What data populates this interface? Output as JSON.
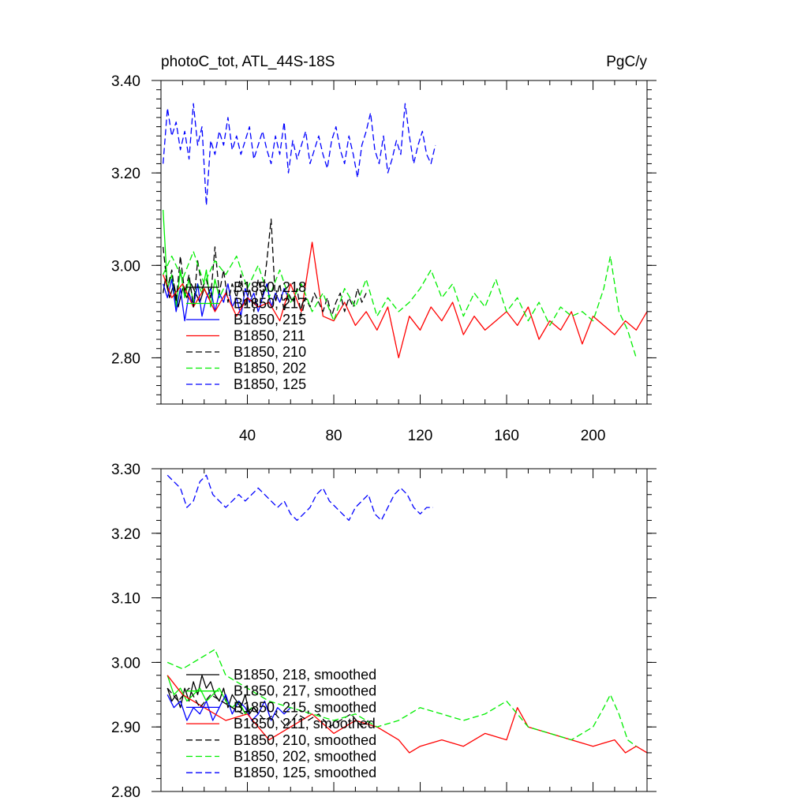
{
  "colors": {
    "blue": "#0000ff",
    "red": "#ff0000",
    "black": "#000000",
    "green": "#00ee00"
  },
  "chart_data": [
    {
      "type": "line",
      "title": "photoC_tot, ATL_44S-18S",
      "units": "PgC/y",
      "xlim": [
        0,
        225
      ],
      "ylim": [
        2.7,
        3.4
      ],
      "x_ticks": [
        40,
        80,
        120,
        160,
        200
      ],
      "y_ticks": [
        2.8,
        3.0,
        3.2,
        3.4
      ],
      "y_tick_labels": [
        "2.80",
        "3.00",
        "3.20",
        "3.40"
      ],
      "series": [
        {
          "name": "B1850, 218",
          "color": "#000000",
          "dash": "solid",
          "x": [
            1,
            2,
            4,
            6,
            8,
            10,
            12,
            14,
            16,
            18,
            20,
            22,
            24
          ],
          "y": [
            2.94,
            2.97,
            2.93,
            2.96,
            2.91,
            2.95,
            2.93,
            2.96,
            2.94,
            2.92,
            2.95,
            2.93,
            2.94
          ]
        },
        {
          "name": "B1850, 217",
          "color": "#00ee00",
          "dash": "solid",
          "x": [
            1,
            3,
            5,
            7,
            9,
            11,
            13,
            15,
            17,
            19,
            21,
            23,
            25,
            27,
            29
          ],
          "y": [
            3.12,
            2.95,
            2.98,
            2.91,
            2.99,
            2.93,
            2.97,
            2.92,
            2.96,
            2.94,
            2.99,
            2.91,
            2.97,
            2.93,
            2.95
          ]
        },
        {
          "name": "B1850, 215",
          "color": "#0000ff",
          "dash": "solid",
          "x": [
            1,
            3,
            5,
            7,
            9,
            11,
            13,
            15,
            17,
            19,
            21,
            23,
            25,
            27,
            29,
            31,
            33,
            35,
            37,
            39,
            41,
            43,
            45,
            47,
            49,
            51,
            53,
            55,
            57,
            59
          ],
          "y": [
            2.96,
            2.93,
            2.97,
            2.9,
            2.95,
            2.88,
            2.94,
            2.91,
            2.96,
            2.89,
            2.93,
            2.95,
            2.9,
            2.94,
            2.92,
            2.96,
            2.91,
            2.93,
            2.89,
            2.95,
            2.92,
            2.94,
            2.9,
            2.93,
            2.96,
            2.91,
            2.94,
            2.92,
            2.95,
            2.93
          ]
        },
        {
          "name": "B1850, 211",
          "color": "#ff0000",
          "dash": "solid",
          "x": [
            1,
            5,
            10,
            15,
            20,
            25,
            30,
            35,
            40,
            45,
            50,
            55,
            60,
            65,
            70,
            75,
            80,
            85,
            90,
            95,
            100,
            105,
            110,
            115,
            120,
            125,
            130,
            135,
            140,
            145,
            150,
            155,
            160,
            165,
            170,
            175,
            180,
            185,
            190,
            195,
            200,
            205,
            210,
            215,
            220,
            225
          ],
          "y": [
            2.98,
            2.93,
            2.96,
            2.91,
            2.95,
            2.9,
            2.94,
            2.89,
            2.93,
            2.91,
            2.92,
            2.88,
            2.96,
            2.9,
            3.05,
            2.89,
            2.88,
            2.92,
            2.87,
            2.9,
            2.86,
            2.91,
            2.8,
            2.89,
            2.86,
            2.91,
            2.88,
            2.92,
            2.85,
            2.89,
            2.86,
            2.88,
            2.9,
            2.87,
            2.91,
            2.84,
            2.88,
            2.86,
            2.9,
            2.83,
            2.89,
            2.87,
            2.85,
            2.88,
            2.86,
            2.9
          ]
        },
        {
          "name": "B1850, 210",
          "color": "#000000",
          "dash": "dashed",
          "x": [
            1,
            3,
            5,
            7,
            9,
            11,
            13,
            15,
            17,
            19,
            21,
            23,
            25,
            27,
            29,
            31,
            33,
            35,
            37,
            39,
            41,
            43,
            45,
            47,
            49,
            51,
            53,
            55,
            57,
            59,
            61,
            63,
            65,
            67,
            69,
            71,
            73,
            75,
            77,
            79,
            81,
            83,
            85,
            87,
            89,
            91,
            93,
            95
          ],
          "y": [
            3.04,
            2.95,
            2.99,
            2.92,
            3.02,
            2.94,
            2.98,
            2.91,
            3.01,
            2.95,
            2.97,
            2.93,
            3.04,
            2.94,
            2.99,
            2.92,
            2.96,
            2.93,
            2.98,
            2.91,
            2.95,
            2.9,
            2.97,
            2.93,
            3.01,
            3.1,
            2.92,
            2.96,
            2.9,
            2.94,
            2.92,
            2.95,
            2.89,
            2.93,
            2.91,
            2.94,
            2.92,
            2.9,
            2.93,
            2.89,
            2.92,
            2.94,
            2.9,
            2.93,
            2.91,
            2.95,
            2.92,
            2.94
          ]
        },
        {
          "name": "B1850, 202",
          "color": "#00ee00",
          "dash": "dashed",
          "x": [
            1,
            5,
            10,
            15,
            20,
            25,
            30,
            35,
            40,
            45,
            50,
            55,
            60,
            65,
            70,
            75,
            80,
            85,
            90,
            95,
            100,
            105,
            110,
            115,
            120,
            125,
            130,
            135,
            140,
            145,
            150,
            155,
            160,
            165,
            170,
            175,
            180,
            185,
            190,
            195,
            200,
            205,
            208,
            212,
            216,
            220
          ],
          "y": [
            2.98,
            3.02,
            2.97,
            3.03,
            2.96,
            3.01,
            2.98,
            3.02,
            2.95,
            3.0,
            2.93,
            2.99,
            2.92,
            2.96,
            2.9,
            2.94,
            2.88,
            2.95,
            2.91,
            2.97,
            2.89,
            2.93,
            2.9,
            2.92,
            2.95,
            2.99,
            2.93,
            2.96,
            2.89,
            2.94,
            2.91,
            2.97,
            2.9,
            2.93,
            2.88,
            2.92,
            2.87,
            2.91,
            2.89,
            2.9,
            2.88,
            2.95,
            3.02,
            2.9,
            2.86,
            2.8
          ]
        },
        {
          "name": "B1850, 125",
          "color": "#0000ff",
          "dash": "dashed",
          "x": [
            1,
            3,
            5,
            7,
            9,
            11,
            13,
            15,
            17,
            19,
            21,
            23,
            25,
            27,
            29,
            31,
            33,
            35,
            37,
            39,
            41,
            43,
            45,
            47,
            49,
            51,
            53,
            55,
            57,
            59,
            61,
            63,
            65,
            67,
            69,
            71,
            73,
            75,
            77,
            79,
            81,
            83,
            85,
            87,
            89,
            91,
            93,
            95,
            97,
            99,
            101,
            103,
            105,
            107,
            109,
            111,
            113,
            115,
            117,
            119,
            121,
            123,
            125,
            127
          ],
          "y": [
            3.22,
            3.34,
            3.28,
            3.31,
            3.25,
            3.29,
            3.23,
            3.35,
            3.26,
            3.3,
            3.13,
            3.27,
            3.24,
            3.29,
            3.26,
            3.32,
            3.25,
            3.28,
            3.24,
            3.27,
            3.3,
            3.23,
            3.26,
            3.29,
            3.25,
            3.22,
            3.28,
            3.24,
            3.31,
            3.2,
            3.27,
            3.23,
            3.26,
            3.29,
            3.22,
            3.25,
            3.28,
            3.24,
            3.21,
            3.27,
            3.3,
            3.25,
            3.22,
            3.28,
            3.24,
            3.19,
            3.26,
            3.29,
            3.33,
            3.25,
            3.22,
            3.28,
            3.2,
            3.23,
            3.27,
            3.24,
            3.35,
            3.28,
            3.22,
            3.26,
            3.29,
            3.24,
            3.22,
            3.26
          ]
        }
      ]
    },
    {
      "type": "line",
      "xlim": [
        0,
        225
      ],
      "ylim": [
        2.8,
        3.3
      ],
      "y_ticks": [
        2.8,
        2.9,
        3.0,
        3.1,
        3.2,
        3.3
      ],
      "y_tick_labels": [
        "2.80",
        "2.90",
        "3.00",
        "3.10",
        "3.20",
        "3.30"
      ],
      "series": [
        {
          "name": "B1850, 218, smoothed",
          "color": "#000000",
          "dash": "solid",
          "x": [
            3,
            5,
            7,
            9,
            11,
            13,
            15,
            17,
            19,
            21,
            23,
            25,
            27,
            29,
            31,
            33,
            35,
            37,
            39,
            41,
            43,
            45
          ],
          "y": [
            2.96,
            2.94,
            2.95,
            2.93,
            2.96,
            2.94,
            2.97,
            2.95,
            2.98,
            2.96,
            2.97,
            2.95,
            2.94,
            2.96,
            2.93,
            2.95,
            2.94,
            2.93,
            2.95,
            2.92,
            2.93,
            2.92
          ]
        },
        {
          "name": "B1850, 217, smoothed",
          "color": "#00ee00",
          "dash": "solid",
          "x": [
            3,
            6,
            9,
            12,
            15,
            18,
            21,
            24,
            27,
            30,
            33,
            36,
            39,
            42
          ],
          "y": [
            2.98,
            2.95,
            2.96,
            2.94,
            2.95,
            2.96,
            2.94,
            2.95,
            2.96,
            2.94,
            2.93,
            2.94,
            2.92,
            2.93
          ]
        },
        {
          "name": "B1850, 215, smoothed",
          "color": "#0000ff",
          "dash": "solid",
          "x": [
            3,
            6,
            9,
            12,
            15,
            18,
            21,
            24,
            27,
            30,
            33,
            36,
            39,
            42,
            45,
            48,
            51,
            54,
            57,
            60
          ],
          "y": [
            2.95,
            2.93,
            2.94,
            2.91,
            2.93,
            2.92,
            2.94,
            2.91,
            2.93,
            2.95,
            2.92,
            2.94,
            2.93,
            2.91,
            2.92,
            2.94,
            2.91,
            2.93,
            2.92,
            2.93
          ]
        },
        {
          "name": "B1850, 211, smoothed",
          "color": "#ff0000",
          "dash": "solid",
          "x": [
            3,
            10,
            20,
            30,
            40,
            50,
            60,
            70,
            80,
            90,
            100,
            110,
            115,
            120,
            130,
            140,
            150,
            160,
            165,
            170,
            180,
            190,
            200,
            210,
            215,
            220,
            225
          ],
          "y": [
            2.98,
            2.95,
            2.93,
            2.91,
            2.92,
            2.88,
            2.9,
            2.92,
            2.89,
            2.91,
            2.9,
            2.88,
            2.86,
            2.87,
            2.88,
            2.87,
            2.89,
            2.88,
            2.93,
            2.9,
            2.89,
            2.88,
            2.87,
            2.88,
            2.86,
            2.87,
            2.86
          ]
        },
        {
          "name": "B1850, 210, smoothed",
          "color": "#000000",
          "dash": "dashed",
          "x": [
            3,
            8,
            13,
            18,
            23,
            28,
            33,
            38,
            43,
            48,
            53,
            58,
            63,
            68,
            73,
            78,
            83,
            88,
            93,
            96
          ],
          "y": [
            2.96,
            2.94,
            2.96,
            2.93,
            2.95,
            2.94,
            2.93,
            2.92,
            2.93,
            2.91,
            2.92,
            2.9,
            2.92,
            2.91,
            2.92,
            2.9,
            2.91,
            2.92,
            2.9,
            2.91
          ]
        },
        {
          "name": "B1850, 202, smoothed",
          "color": "#00ee00",
          "dash": "dashed",
          "x": [
            3,
            10,
            20,
            25,
            30,
            40,
            50,
            60,
            70,
            80,
            90,
            100,
            110,
            120,
            130,
            140,
            150,
            160,
            170,
            180,
            190,
            200,
            205,
            208,
            212,
            216,
            220
          ],
          "y": [
            3.0,
            2.99,
            3.01,
            3.02,
            2.98,
            2.96,
            2.94,
            2.93,
            2.92,
            2.91,
            2.92,
            2.9,
            2.91,
            2.93,
            2.92,
            2.91,
            2.92,
            2.94,
            2.9,
            2.89,
            2.88,
            2.9,
            2.93,
            2.95,
            2.92,
            2.88,
            2.87
          ]
        },
        {
          "name": "B1850, 125, smoothed",
          "color": "#0000ff",
          "dash": "dashed",
          "x": [
            3,
            6,
            9,
            12,
            15,
            18,
            21,
            24,
            27,
            30,
            33,
            36,
            39,
            42,
            45,
            48,
            51,
            54,
            57,
            60,
            63,
            66,
            69,
            72,
            75,
            78,
            81,
            84,
            87,
            90,
            93,
            96,
            99,
            102,
            105,
            108,
            111,
            114,
            117,
            120,
            123,
            126
          ],
          "y": [
            3.29,
            3.28,
            3.27,
            3.24,
            3.25,
            3.28,
            3.29,
            3.26,
            3.25,
            3.24,
            3.25,
            3.26,
            3.25,
            3.26,
            3.27,
            3.26,
            3.25,
            3.24,
            3.25,
            3.23,
            3.22,
            3.23,
            3.24,
            3.26,
            3.27,
            3.25,
            3.24,
            3.23,
            3.22,
            3.24,
            3.25,
            3.26,
            3.23,
            3.22,
            3.24,
            3.26,
            3.27,
            3.26,
            3.24,
            3.23,
            3.24,
            3.24
          ]
        }
      ]
    }
  ]
}
